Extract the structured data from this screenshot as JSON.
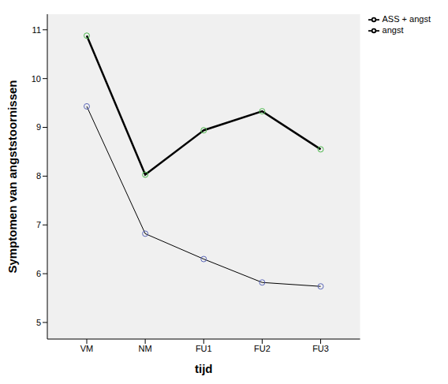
{
  "chart_data": {
    "type": "line",
    "x_label": "tijd",
    "y_label": "Symptomen van angststoornissen",
    "categories": [
      "VM",
      "NM",
      "FU1",
      "FU2",
      "FU3"
    ],
    "series": [
      {
        "name": "angst",
        "color": "#000000",
        "marker": "circle",
        "values": [
          9.43,
          6.82,
          6.3,
          5.82,
          5.74
        ]
      },
      {
        "name": "ASS + angst",
        "color": "#000000",
        "marker": "circle",
        "values": [
          10.88,
          8.03,
          8.94,
          9.33,
          8.55
        ]
      }
    ],
    "ylim": [
      4.66,
      11.32
    ],
    "yticks": [
      5,
      6,
      7,
      8,
      9,
      10,
      11
    ],
    "grid": false,
    "legend": "upper right"
  }
}
